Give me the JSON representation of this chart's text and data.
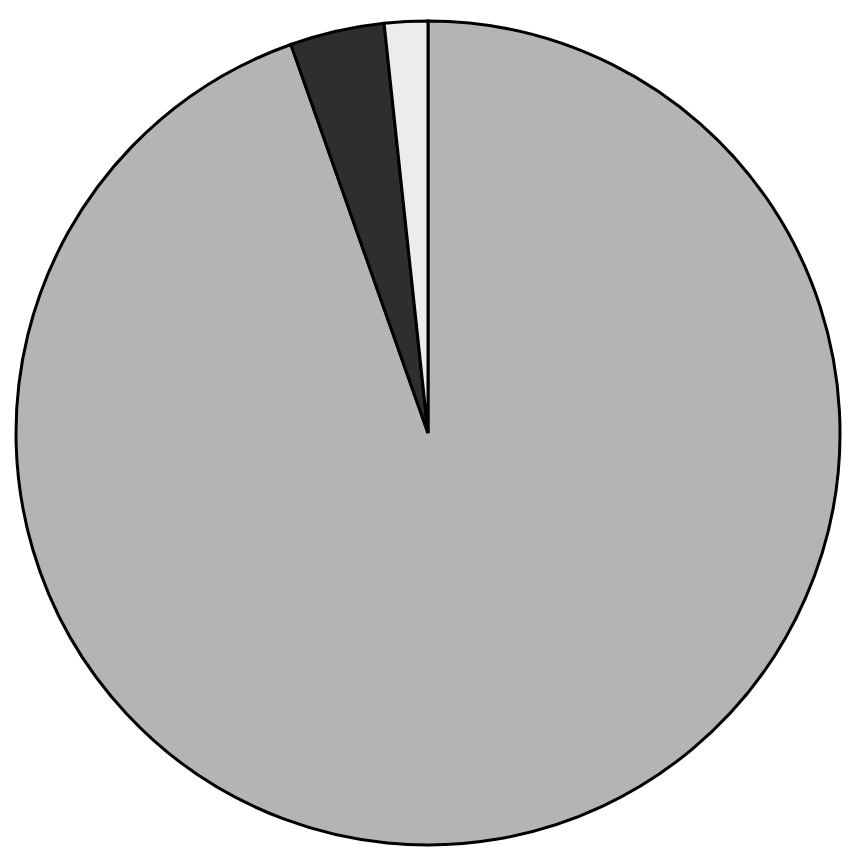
{
  "chart_data": {
    "type": "pie",
    "categories": [
      null,
      null,
      null
    ],
    "values": [
      94.6,
      3.7,
      1.7
    ],
    "colors": [
      "#b4b4b4",
      "#2e2e2e",
      "#ececec"
    ],
    "legend": false
  }
}
